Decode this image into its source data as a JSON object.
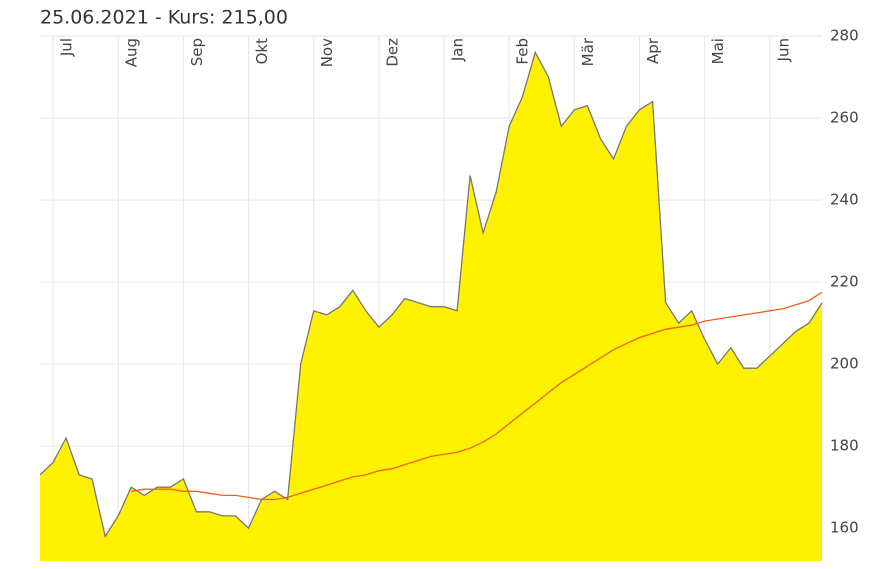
{
  "chart_data": {
    "type": "area",
    "title": "25.06.2021  - Kurs: 215,00",
    "categories": [
      null,
      "Jul",
      null,
      null,
      null,
      null,
      "Aug",
      null,
      null,
      null,
      null,
      "Sep",
      null,
      null,
      null,
      null,
      "Okt",
      null,
      null,
      null,
      null,
      "Nov",
      null,
      null,
      null,
      null,
      "Dez",
      null,
      null,
      null,
      null,
      "Jan",
      null,
      null,
      null,
      null,
      "Feb",
      null,
      null,
      null,
      null,
      "Mär",
      null,
      null,
      null,
      null,
      "Apr",
      null,
      null,
      null,
      null,
      "Mai",
      null,
      null,
      null,
      null,
      "Jun",
      null,
      null,
      null,
      null
    ],
    "series": [
      {
        "color": "#fff200",
        "line_color": "#777777",
        "values": [
          173,
          176,
          182,
          173,
          172,
          158,
          163,
          170,
          168,
          170,
          170,
          172,
          164,
          164,
          163,
          163,
          160,
          167,
          169,
          167,
          200,
          213,
          212,
          214,
          218,
          213,
          209,
          212,
          216,
          215,
          214,
          214,
          213,
          246,
          232,
          242,
          258,
          265,
          276,
          270,
          258,
          262,
          263,
          255,
          250,
          258,
          262,
          264,
          215,
          210,
          213,
          206,
          200,
          204,
          199,
          199,
          202,
          205,
          208,
          210,
          215
        ]
      },
      {
        "color": "#f06020",
        "values": [
          null,
          null,
          null,
          null,
          null,
          null,
          null,
          169,
          169.5,
          169.5,
          169.5,
          169,
          169,
          168.5,
          168,
          168,
          167.5,
          167,
          167,
          167.5,
          168.5,
          169.5,
          170.5,
          171.5,
          172.5,
          173,
          174,
          174.5,
          175.5,
          176.5,
          177.5,
          178,
          178.5,
          179.5,
          181,
          183,
          185.5,
          188,
          190.5,
          193,
          195.5,
          197.5,
          199.5,
          201.5,
          203.5,
          205,
          206.5,
          207.5,
          208.5,
          209,
          209.5,
          210.5,
          211,
          211.5,
          212,
          212.5,
          213,
          213.5,
          214.5,
          215.5,
          217.5
        ]
      }
    ],
    "ylim": [
      152,
      280
    ],
    "yticks": [
      160,
      180,
      200,
      220,
      240,
      260,
      280
    ],
    "grid": true
  }
}
